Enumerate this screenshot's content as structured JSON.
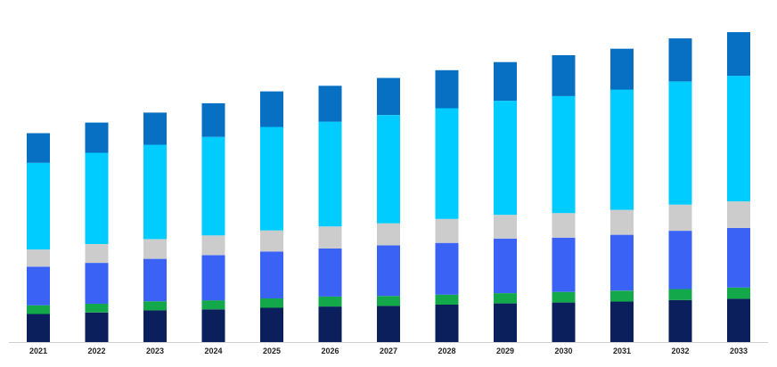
{
  "chart_data": {
    "type": "bar",
    "stacked": true,
    "title": "",
    "xlabel": "",
    "ylabel": "",
    "ylim": [
      0,
      100
    ],
    "grid": false,
    "legend": "none",
    "y_axis_visible": false,
    "categories": [
      "2021",
      "2022",
      "2023",
      "2024",
      "2025",
      "2026",
      "2027",
      "2028",
      "2029",
      "2030",
      "2031",
      "2032",
      "2033"
    ],
    "series": [
      {
        "color": "#0a1f5c",
        "values": [
          9.0,
          9.5,
          10.2,
          10.5,
          11.0,
          11.4,
          11.6,
          12.0,
          12.4,
          12.7,
          13.0,
          13.5,
          13.9
        ]
      },
      {
        "color": "#13a84a",
        "values": [
          2.8,
          2.8,
          2.9,
          2.9,
          3.0,
          3.2,
          3.2,
          3.2,
          3.3,
          3.4,
          3.5,
          3.5,
          3.6
        ]
      },
      {
        "color": "#3a63f5",
        "values": [
          12.4,
          13.1,
          13.6,
          14.5,
          15.0,
          15.4,
          16.2,
          16.6,
          17.5,
          17.4,
          17.9,
          18.7,
          19.1
        ]
      },
      {
        "color": "#cccccc",
        "values": [
          5.5,
          6.0,
          6.3,
          6.3,
          6.8,
          7.1,
          7.1,
          7.7,
          7.6,
          7.9,
          8.0,
          8.4,
          8.5
        ]
      },
      {
        "color": "#00ccff",
        "values": [
          27.8,
          29.3,
          30.3,
          31.6,
          33.2,
          33.6,
          34.7,
          35.5,
          36.6,
          37.5,
          38.6,
          39.5,
          40.3
        ]
      },
      {
        "color": "#0870c2",
        "values": [
          9.5,
          9.7,
          10.3,
          10.8,
          11.4,
          11.5,
          11.9,
          12.2,
          12.4,
          13.1,
          13.1,
          13.8,
          14.0
        ]
      }
    ]
  }
}
